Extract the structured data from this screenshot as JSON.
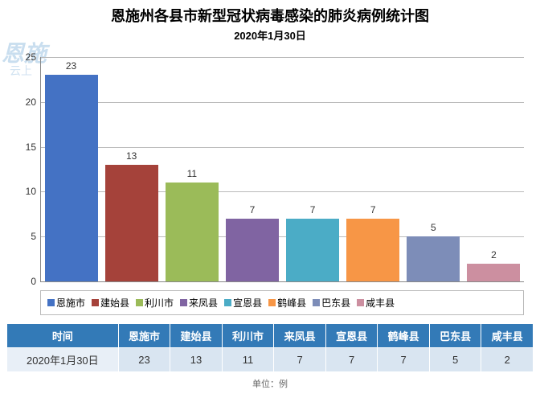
{
  "watermark": {
    "main": "恩施",
    "sub": "云上"
  },
  "title": "恩施州各县市新型冠状病毒感染的肺炎病例统计图",
  "subtitle": "2020年1月30日",
  "chart": {
    "type": "bar",
    "categories": [
      "恩施市",
      "建始县",
      "利川市",
      "来凤县",
      "宣恩县",
      "鹤峰县",
      "巴东县",
      "咸丰县"
    ],
    "values": [
      23,
      13,
      11,
      7,
      7,
      7,
      5,
      2
    ],
    "bar_colors": [
      "#4472c4",
      "#a5423a",
      "#9bbb59",
      "#8064a2",
      "#4bacc6",
      "#f79646",
      "#7d8db8",
      "#cc8fa0"
    ],
    "ylim": [
      0,
      25
    ],
    "ytick_step": 5,
    "grid_color": "#bbbbbb",
    "background_color": "#ffffff",
    "label_fontsize": 12
  },
  "legend_items": [
    {
      "label": "恩施市",
      "color": "#4472c4"
    },
    {
      "label": "建始县",
      "color": "#a5423a"
    },
    {
      "label": "利川市",
      "color": "#9bbb59"
    },
    {
      "label": "来凤县",
      "color": "#8064a2"
    },
    {
      "label": "宣恩县",
      "color": "#4bacc6"
    },
    {
      "label": "鹤峰县",
      "color": "#f79646"
    },
    {
      "label": "巴东县",
      "color": "#7d8db8"
    },
    {
      "label": "咸丰县",
      "color": "#cc8fa0"
    }
  ],
  "table": {
    "header_first": "时间",
    "columns": [
      "恩施市",
      "建始县",
      "利川市",
      "来凤县",
      "宣恩县",
      "鹤峰县",
      "巴东县",
      "咸丰县"
    ],
    "row_label": "2020年1月30日",
    "row_values": [
      23,
      13,
      11,
      7,
      7,
      7,
      5,
      2
    ],
    "header_bg": "#337ab7",
    "cell_bg": "#d9e5f1"
  },
  "unit_label": "单位：例"
}
